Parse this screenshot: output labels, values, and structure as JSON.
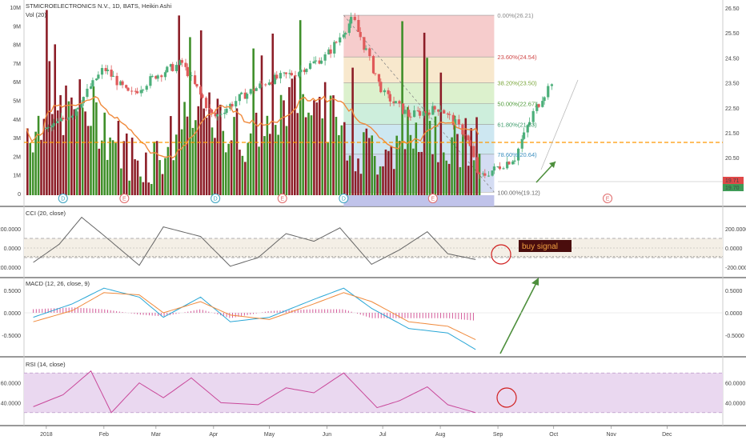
{
  "header": {
    "title": "STMICROELECTRONICS N.V., 1D, BATS, Heikin Ashi",
    "volume_label": "Vol (20)"
  },
  "colors": {
    "up": "#3f8f2a",
    "down": "#8c1d27",
    "candle_up": "#4caf7a",
    "candle_down": "#e05a5a",
    "ma": "#f08a3c",
    "fib_level": "#ff9800",
    "badge_d": "#3aa3c0",
    "badge_e": "#e06a6a",
    "cci_line": "#666666",
    "macd_line": "#2aa7d6",
    "signal_line": "#f08a3c",
    "hist": "#d35c9a",
    "rsi_line": "#c9489a",
    "rsi_band": "#ead8f0",
    "arrow": "#4d8f3c",
    "annotation": "#d01f1f",
    "buy_box": "#4a0d0d"
  },
  "price_chart": {
    "volume_axis_labels": [
      "10M",
      "9M",
      "8M",
      "7M",
      "6M",
      "5M",
      "4M",
      "3M",
      "2M",
      "1M",
      "0"
    ],
    "price_axis_labels": [
      "26.50",
      "25.50",
      "24.50",
      "23.50",
      "22.50",
      "21.50",
      "20.50"
    ],
    "current_price_labels": [
      "19.71",
      "19.70"
    ],
    "fib_levels": [
      {
        "label": "0.00%(26.21)",
        "price": 26.21
      },
      {
        "label": "23.60%(24.54)",
        "price": 24.54
      },
      {
        "label": "38.20%(23.50)",
        "price": 23.5
      },
      {
        "label": "50.00%(22.67)",
        "price": 22.67
      },
      {
        "label": "61.80%(21.83)",
        "price": 21.83
      },
      {
        "label": "78.60%(20.64)",
        "price": 20.64
      },
      {
        "label": "100.00%(19.12)",
        "price": 19.12
      }
    ],
    "event_badges": [
      "D",
      "E",
      "D",
      "E",
      "D",
      "E",
      "E"
    ]
  },
  "cci": {
    "title": "CCI (20, close)",
    "axis_labels": [
      "200.0000",
      "0.0000",
      "-200.0000"
    ],
    "buy_signal": "buy signal"
  },
  "macd": {
    "title": "MACD (12, 26, close, 9)",
    "axis_labels": [
      "0.5000",
      "0.0000",
      "-0.5000"
    ]
  },
  "rsi": {
    "title": "RSI (14, close)",
    "axis_labels": [
      "60.0000",
      "40.0000"
    ]
  },
  "time_axis": {
    "labels": [
      "2018",
      "Feb",
      "Mar",
      "Apr",
      "May",
      "Jun",
      "Jul",
      "Aug",
      "Sep",
      "Oct",
      "Nov",
      "Dec"
    ]
  },
  "chart_data": {
    "type": "candlestick",
    "chart_style": "Heikin Ashi",
    "x_range": [
      "2017-12-20",
      "2018-12-31"
    ],
    "price_ylim": [
      19.0,
      26.5
    ],
    "volume_ylim": [
      0,
      10000000
    ],
    "series": [
      {
        "name": "Vol (20)",
        "type": "bar",
        "x": [
          "2018-01-01",
          "2018-01-15",
          "2018-02-01",
          "2018-02-15",
          "2018-03-01",
          "2018-03-15",
          "2018-04-01",
          "2018-04-15",
          "2018-05-01",
          "2018-05-15",
          "2018-06-01",
          "2018-06-15",
          "2018-07-01",
          "2018-07-15",
          "2018-08-01",
          "2018-08-15"
        ],
        "values": [
          3800000,
          3300000,
          5200000,
          4300000,
          4700000,
          3300000,
          3200000,
          2900000,
          2800000,
          3100000,
          4000000,
          4200000,
          3700000,
          3800000,
          4500000,
          2200000
        ]
      },
      {
        "name": "Price",
        "type": "line",
        "x": [
          "2018-01-01",
          "2018-01-15",
          "2018-02-01",
          "2018-02-15",
          "2018-03-01",
          "2018-03-15",
          "2018-04-01",
          "2018-04-15",
          "2018-05-01",
          "2018-05-15",
          "2018-06-01",
          "2018-06-15",
          "2018-07-01",
          "2018-07-15",
          "2018-08-01",
          "2018-08-15",
          "2018-08-22",
          "2018-09-10",
          "2018-09-20",
          "2018-10-01"
        ],
        "values": [
          21.6,
          22.3,
          24.1,
          23.0,
          23.8,
          24.3,
          22.1,
          22.9,
          23.6,
          23.9,
          24.6,
          26.1,
          23.1,
          22.2,
          22.5,
          21.4,
          19.7,
          20.5,
          22.3,
          23.7
        ]
      },
      {
        "name": "CCI (20, close)",
        "type": "line",
        "x": [
          "2017-12-25",
          "2018-01-08",
          "2018-01-20",
          "2018-02-01",
          "2018-02-20",
          "2018-03-05",
          "2018-03-25",
          "2018-04-10",
          "2018-04-25",
          "2018-05-10",
          "2018-05-25",
          "2018-06-08",
          "2018-06-25",
          "2018-07-10",
          "2018-07-25",
          "2018-08-05",
          "2018-08-20"
        ],
        "values": [
          -150,
          40,
          320,
          130,
          -180,
          220,
          120,
          -190,
          -100,
          150,
          70,
          210,
          -170,
          -20,
          170,
          -60,
          -120
        ]
      },
      {
        "name": "MACD",
        "type": "line",
        "x": [
          "2017-12-25",
          "2018-01-15",
          "2018-02-01",
          "2018-02-20",
          "2018-03-05",
          "2018-03-25",
          "2018-04-10",
          "2018-05-01",
          "2018-05-25",
          "2018-06-10",
          "2018-06-25",
          "2018-07-15",
          "2018-08-05",
          "2018-08-20"
        ],
        "values": [
          -0.1,
          0.2,
          0.55,
          0.35,
          -0.1,
          0.35,
          -0.2,
          -0.1,
          0.3,
          0.55,
          0.1,
          -0.35,
          -0.45,
          -0.82
        ]
      },
      {
        "name": "Signal",
        "type": "line",
        "x": [
          "2017-12-25",
          "2018-01-15",
          "2018-02-01",
          "2018-02-20",
          "2018-03-05",
          "2018-03-25",
          "2018-04-10",
          "2018-05-01",
          "2018-05-25",
          "2018-06-10",
          "2018-06-25",
          "2018-07-15",
          "2018-08-05",
          "2018-08-20"
        ],
        "values": [
          -0.2,
          0.05,
          0.45,
          0.4,
          0.0,
          0.25,
          -0.05,
          -0.15,
          0.2,
          0.45,
          0.25,
          -0.2,
          -0.3,
          -0.6
        ]
      },
      {
        "name": "RSI (14, close)",
        "type": "line",
        "x": [
          "2017-12-25",
          "2018-01-10",
          "2018-01-25",
          "2018-02-05",
          "2018-02-20",
          "2018-03-05",
          "2018-03-20",
          "2018-04-05",
          "2018-04-25",
          "2018-05-10",
          "2018-05-25",
          "2018-06-10",
          "2018-06-28",
          "2018-07-10",
          "2018-07-25",
          "2018-08-05",
          "2018-08-20"
        ],
        "values": [
          36,
          48,
          72,
          30,
          60,
          45,
          65,
          40,
          38,
          55,
          50,
          70,
          35,
          42,
          56,
          38,
          30
        ]
      }
    ]
  }
}
